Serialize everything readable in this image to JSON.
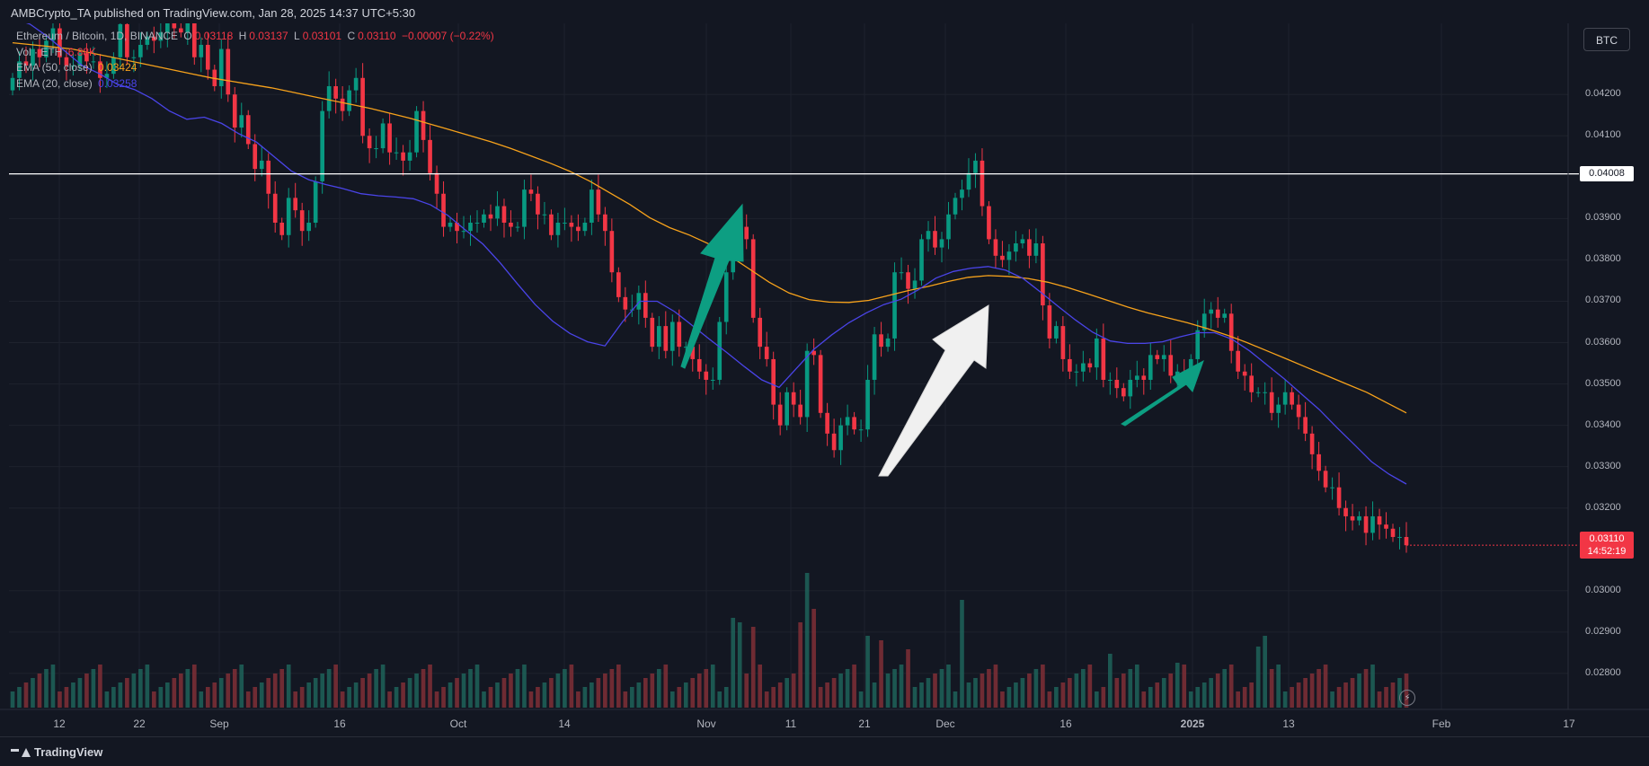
{
  "header": {
    "publisher_line": "AMBCrypto_TA published on TradingView.com, Jan 28, 2025 14:37 UTC+5:30"
  },
  "legend": {
    "symbol": "Ethereum / Bitcoin, 1D, BINANCE",
    "ohlc": {
      "o_label": "O",
      "o": "0.03118",
      "h_label": "H",
      "h": "0.03137",
      "l_label": "L",
      "l": "0.03101",
      "c_label": "C",
      "c": "0.03110",
      "change": "−0.00007 (−0.22%)"
    },
    "volume": {
      "label": "Vol · ETH",
      "value": "6.88K"
    },
    "ema50": {
      "label": "EMA (50, close)",
      "value": "0.03424",
      "color": "#f7a21b"
    },
    "ema20": {
      "label": "EMA (20, close)",
      "value": "0.03258",
      "color": "#4a44e8"
    }
  },
  "toolbar": {
    "currency": "BTC"
  },
  "footer": {
    "brand": "TradingView"
  },
  "icons": {
    "flash": "flash-icon",
    "brand_logo": "tradingview-logo-icon"
  },
  "colors": {
    "up": "#089981",
    "down": "#f23645",
    "ema50": "#f7a21b",
    "ema20": "#4a44e8",
    "level_line": "#ffffff",
    "background": "#131722",
    "grid": "#1e222d",
    "arrow_teal": "#0d9e82",
    "arrow_white": "#f0f0f0"
  },
  "chart_data": {
    "type": "candlestick",
    "title": "",
    "xlabel": "",
    "ylabel": "",
    "ylim": [
      0.02713,
      0.04372
    ],
    "grid": true,
    "x_tick_labels": [
      "12",
      "22",
      "Sep",
      "16",
      "Oct",
      "14",
      "Nov",
      "11",
      "21",
      "Dec",
      "16",
      "2025",
      "13",
      "Feb",
      "17"
    ],
    "y_tick_labels": [
      "0.04200",
      "0.04100",
      "0.03900",
      "0.03800",
      "0.03700",
      "0.03600",
      "0.03500",
      "0.03400",
      "0.03300",
      "0.03200",
      "0.03000",
      "0.02900",
      "0.02800"
    ],
    "y_tick_values": [
      0.042,
      0.041,
      0.039,
      0.038,
      0.037,
      0.036,
      0.035,
      0.034,
      0.033,
      0.032,
      0.03,
      0.029,
      0.028
    ],
    "horizontal_level": {
      "value": 0.04008,
      "label": "0.04008"
    },
    "last_price": {
      "value": 0.0311,
      "label": "0.03110",
      "countdown": "14:52:19"
    },
    "closes": [
      0.0424,
      0.0428,
      0.0427,
      0.0431,
      0.0429,
      0.0433,
      0.0436,
      0.0429,
      0.0427,
      0.0427,
      0.043,
      0.0428,
      0.0428,
      0.0424,
      0.0425,
      0.0429,
      0.0437,
      0.0429,
      0.0429,
      0.0432,
      0.0434,
      0.0433,
      0.0435,
      0.0439,
      0.0436,
      0.0435,
      0.0439,
      0.0429,
      0.0432,
      0.0426,
      0.0422,
      0.0431,
      0.042,
      0.0412,
      0.0415,
      0.0408,
      0.0402,
      0.0404,
      0.0396,
      0.0389,
      0.0386,
      0.0395,
      0.0392,
      0.0387,
      0.0389,
      0.0399,
      0.0416,
      0.0422,
      0.0419,
      0.0416,
      0.0421,
      0.0424,
      0.041,
      0.0407,
      0.0407,
      0.0413,
      0.0406,
      0.0406,
      0.0404,
      0.0406,
      0.0416,
      0.0409,
      0.0401,
      0.0396,
      0.0388,
      0.0389,
      0.0387,
      0.0387,
      0.0389,
      0.0389,
      0.0391,
      0.039,
      0.0393,
      0.0389,
      0.0388,
      0.0388,
      0.0397,
      0.0396,
      0.0391,
      0.0391,
      0.0386,
      0.0389,
      0.0389,
      0.0388,
      0.0387,
      0.0389,
      0.0397,
      0.0391,
      0.0387,
      0.0377,
      0.0371,
      0.0368,
      0.0368,
      0.0372,
      0.0366,
      0.0359,
      0.0364,
      0.0358,
      0.0365,
      0.0359,
      0.0359,
      0.0356,
      0.0353,
      0.0351,
      0.0351,
      0.0365,
      0.0377,
      0.0385,
      0.0388,
      0.0385,
      0.0366,
      0.0359,
      0.0356,
      0.0345,
      0.034,
      0.0348,
      0.0345,
      0.0342,
      0.0358,
      0.0357,
      0.0343,
      0.0338,
      0.0334,
      0.034,
      0.0342,
      0.0339,
      0.0339,
      0.0351,
      0.0362,
      0.0359,
      0.0361,
      0.0377,
      0.0377,
      0.0373,
      0.0375,
      0.0385,
      0.0387,
      0.0383,
      0.0385,
      0.0391,
      0.0395,
      0.0397,
      0.0401,
      0.0404,
      0.0393,
      0.0385,
      0.0381,
      0.038,
      0.0382,
      0.0384,
      0.0385,
      0.0381,
      0.0384,
      0.0369,
      0.0361,
      0.0364,
      0.0356,
      0.0353,
      0.0353,
      0.0355,
      0.0354,
      0.0361,
      0.0351,
      0.0351,
      0.0349,
      0.0347,
      0.0351,
      0.0352,
      0.0351,
      0.0357,
      0.0356,
      0.0357,
      0.0352,
      0.0353,
      0.0352,
      0.0356,
      0.0363,
      0.0367,
      0.0368,
      0.0366,
      0.0367,
      0.0358,
      0.0353,
      0.0352,
      0.0348,
      0.0348,
      0.0348,
      0.0343,
      0.0345,
      0.0348,
      0.0345,
      0.0342,
      0.0338,
      0.0333,
      0.0329,
      0.0325,
      0.0325,
      0.032,
      0.0318,
      0.0317,
      0.0318,
      0.0314,
      0.0318,
      0.0316,
      0.0315,
      0.0313,
      0.0313,
      0.0311
    ],
    "ema50_points": [
      0.04325,
      0.0432,
      0.04315,
      0.0431,
      0.043,
      0.0429,
      0.0428,
      0.0427,
      0.0426,
      0.0425,
      0.0424,
      0.04232,
      0.04224,
      0.04216,
      0.04206,
      0.04196,
      0.04186,
      0.04176,
      0.04166,
      0.04154,
      0.04142,
      0.04128,
      0.04114,
      0.041,
      0.04086,
      0.0407,
      0.04052,
      0.04034,
      0.04014,
      0.0399,
      0.03962,
      0.03934,
      0.03902,
      0.03878,
      0.0386,
      0.03838,
      0.0381,
      0.03778,
      0.03746,
      0.0372,
      0.03704,
      0.03698,
      0.03697,
      0.03702,
      0.03714,
      0.03726,
      0.03736,
      0.03748,
      0.03758,
      0.03762,
      0.0376,
      0.03755,
      0.03746,
      0.03733,
      0.03718,
      0.03702,
      0.03686,
      0.03672,
      0.0366,
      0.03648,
      0.03634,
      0.03618,
      0.036,
      0.0358,
      0.0356,
      0.0354,
      0.0352,
      0.035,
      0.0348,
      0.03455,
      0.0343
    ],
    "ema20_points": [
      0.04385,
      0.0437,
      0.0434,
      0.04305,
      0.0427,
      0.0425,
      0.04225,
      0.04212,
      0.0419,
      0.0416,
      0.0414,
      0.04145,
      0.0413,
      0.04105,
      0.04085,
      0.0405,
      0.04015,
      0.03994,
      0.03982,
      0.03972,
      0.0396,
      0.03955,
      0.03952,
      0.03948,
      0.03933,
      0.03907,
      0.03872,
      0.03838,
      0.03792,
      0.03741,
      0.03692,
      0.03652,
      0.03622,
      0.03602,
      0.03592,
      0.0365,
      0.037,
      0.037,
      0.03675,
      0.03642,
      0.03608,
      0.03576,
      0.03542,
      0.0351,
      0.03492,
      0.03538,
      0.03584,
      0.03618,
      0.03648,
      0.03672,
      0.03692,
      0.03705,
      0.03728,
      0.03756,
      0.03772,
      0.0378,
      0.03784,
      0.03775,
      0.03755,
      0.03722,
      0.03688,
      0.03655,
      0.03625,
      0.03604,
      0.03598,
      0.03598,
      0.03602,
      0.03614,
      0.03624,
      0.03624,
      0.03608,
      0.0358,
      0.03546,
      0.03512,
      0.03475,
      0.03438,
      0.03395,
      0.03354,
      0.03312,
      0.03282,
      0.03258
    ]
  }
}
